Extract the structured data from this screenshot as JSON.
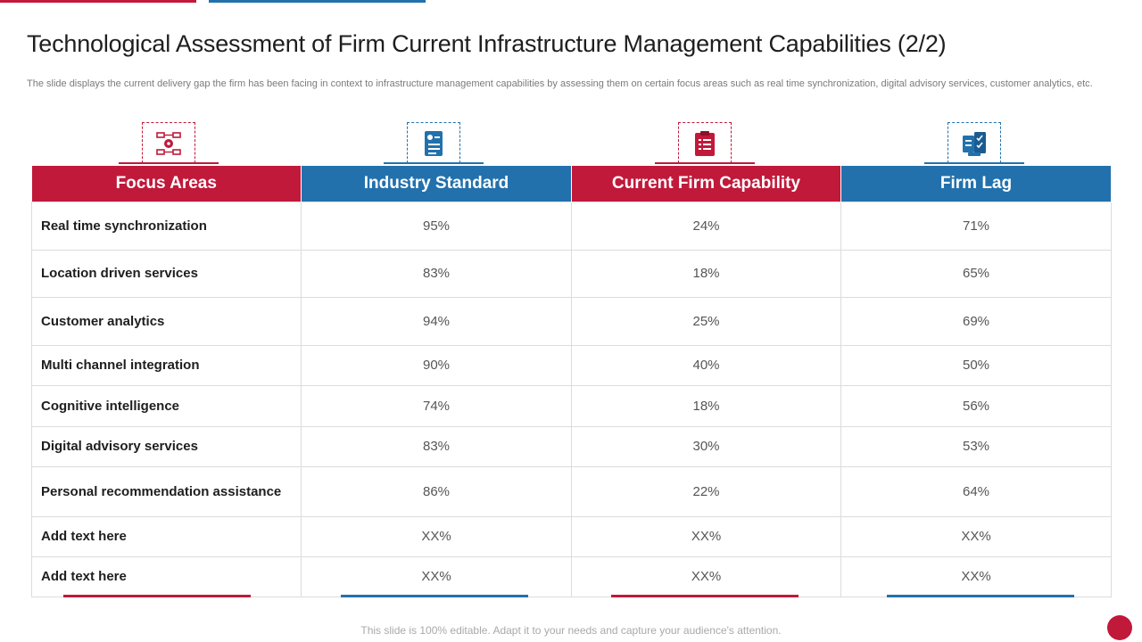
{
  "slide": {
    "title": "Technological Assessment of Firm Current Infrastructure Management Capabilities (2/2)",
    "subtitle": "The slide displays the current delivery gap the firm has been facing in context to infrastructure management capabilities by assessing them on certain focus areas such as real time synchronization, digital advisory services, customer analytics, etc.",
    "footer": "This slide is 100% editable. Adapt it to your needs and capture your audience's attention."
  },
  "icons": [
    "settings-process-icon",
    "report-card-icon",
    "clipboard-list-icon",
    "documents-checklist-icon"
  ],
  "colors": {
    "accent_red": "#c0193a",
    "accent_blue": "#2271ad"
  },
  "table": {
    "headers": [
      "Focus Areas",
      "Industry Standard",
      "Current Firm Capability",
      "Firm Lag"
    ],
    "rows": [
      {
        "area": "Real time synchronization",
        "industry": "95%",
        "current": "24%",
        "lag": "71%"
      },
      {
        "area": "Location driven services",
        "industry": "83%",
        "current": "18%",
        "lag": "65%"
      },
      {
        "area": "Customer analytics",
        "industry": "94%",
        "current": "25%",
        "lag": "69%"
      },
      {
        "area": "Multi channel integration",
        "industry": "90%",
        "current": "40%",
        "lag": "50%"
      },
      {
        "area": "Cognitive intelligence",
        "industry": "74%",
        "current": "18%",
        "lag": "56%"
      },
      {
        "area": "Digital advisory services",
        "industry": "83%",
        "current": "30%",
        "lag": "53%"
      },
      {
        "area": "Personal recommendation assistance",
        "industry": "86%",
        "current": "22%",
        "lag": "64%"
      },
      {
        "area": "Add  text here",
        "industry": "XX%",
        "current": "XX%",
        "lag": "XX%"
      },
      {
        "area": "Add  text here",
        "industry": "XX%",
        "current": "XX%",
        "lag": "XX%"
      }
    ]
  }
}
